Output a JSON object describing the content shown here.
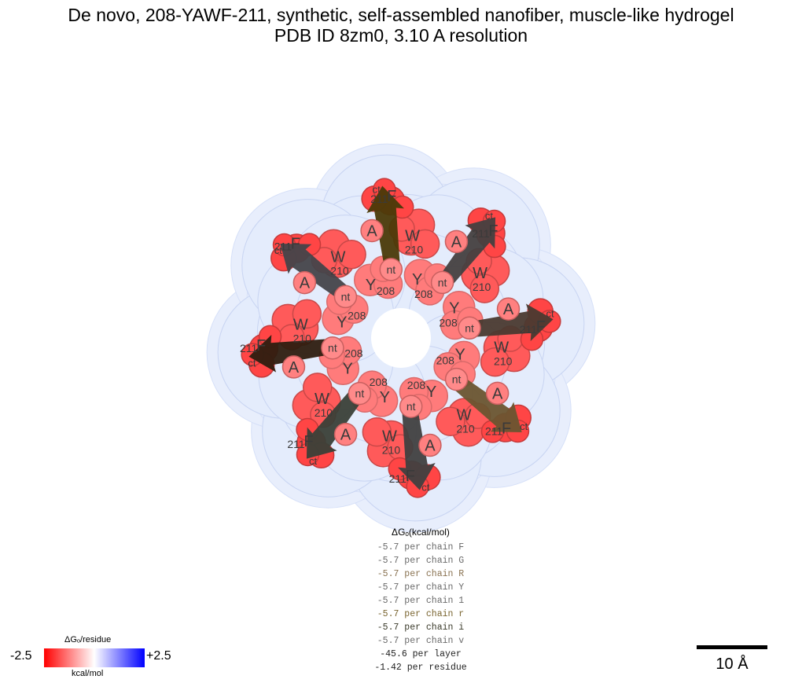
{
  "title_line1": "De novo, 208-YAWF-211, synthetic, self-assembled nanofiber, muscle-like hydrogel",
  "title_line2": "PDB ID 8zm0, 3.10 A resolution",
  "energy_header": "ΔGₒ(kcal/mol)",
  "energy_rows": [
    {
      "text": "-5.7 per chain F",
      "color": "#6a6a6a"
    },
    {
      "text": "-5.7 per chain G",
      "color": "#6a6a6a"
    },
    {
      "text": "-5.7 per chain R",
      "color": "#8a7352"
    },
    {
      "text": "-5.7 per chain Y",
      "color": "#6a6a6a"
    },
    {
      "text": "-5.7 per chain 1",
      "color": "#6a6a6a"
    },
    {
      "text": "-5.7 per chain r",
      "color": "#7a6530"
    },
    {
      "text": "-5.7 per chain i",
      "color": "#3a3a2a"
    },
    {
      "text": "-5.7 per chain v",
      "color": "#6a6a6a"
    },
    {
      "text": "-45.6 per layer",
      "color": "#222222"
    },
    {
      "text": "-1.42 per residue",
      "color": "#222222"
    }
  ],
  "colorbar": {
    "title": "ΔGₒ/residue",
    "min_label": "-2.5",
    "max_label": "+2.5",
    "unit": "kcal/mol"
  },
  "scale_bar_label": "10 Å",
  "chains": [
    {
      "angle": -97,
      "arrow_color": "#4a3a08",
      "res208": "208",
      "res211": "211"
    },
    {
      "angle": -52,
      "arrow_color": "#454040",
      "res208": "208",
      "res211": "211"
    },
    {
      "angle": -7,
      "arrow_color": "#4a3a30",
      "res208": "208",
      "res211": "211"
    },
    {
      "angle": 38,
      "arrow_color": "#6a5530",
      "res208": "208",
      "res211": "211"
    },
    {
      "angle": 83,
      "arrow_color": "#404040",
      "res208": "208",
      "res211": "211"
    },
    {
      "angle": 128,
      "arrow_color": "#3a4038",
      "res208": "208",
      "res211": "211"
    },
    {
      "angle": 173,
      "arrow_color": "#2e1e10",
      "res208": "208",
      "res211": "211"
    },
    {
      "angle": 218,
      "arrow_color": "#44444a",
      "res208": "208",
      "res211": "211"
    }
  ],
  "residue_letters": {
    "nt": "nt",
    "Y": "Y",
    "A": "A",
    "W": "W",
    "F": "F",
    "ct": "ct"
  },
  "residue_numbers": {
    "W": "210",
    "F": "211",
    "Y": "208"
  }
}
